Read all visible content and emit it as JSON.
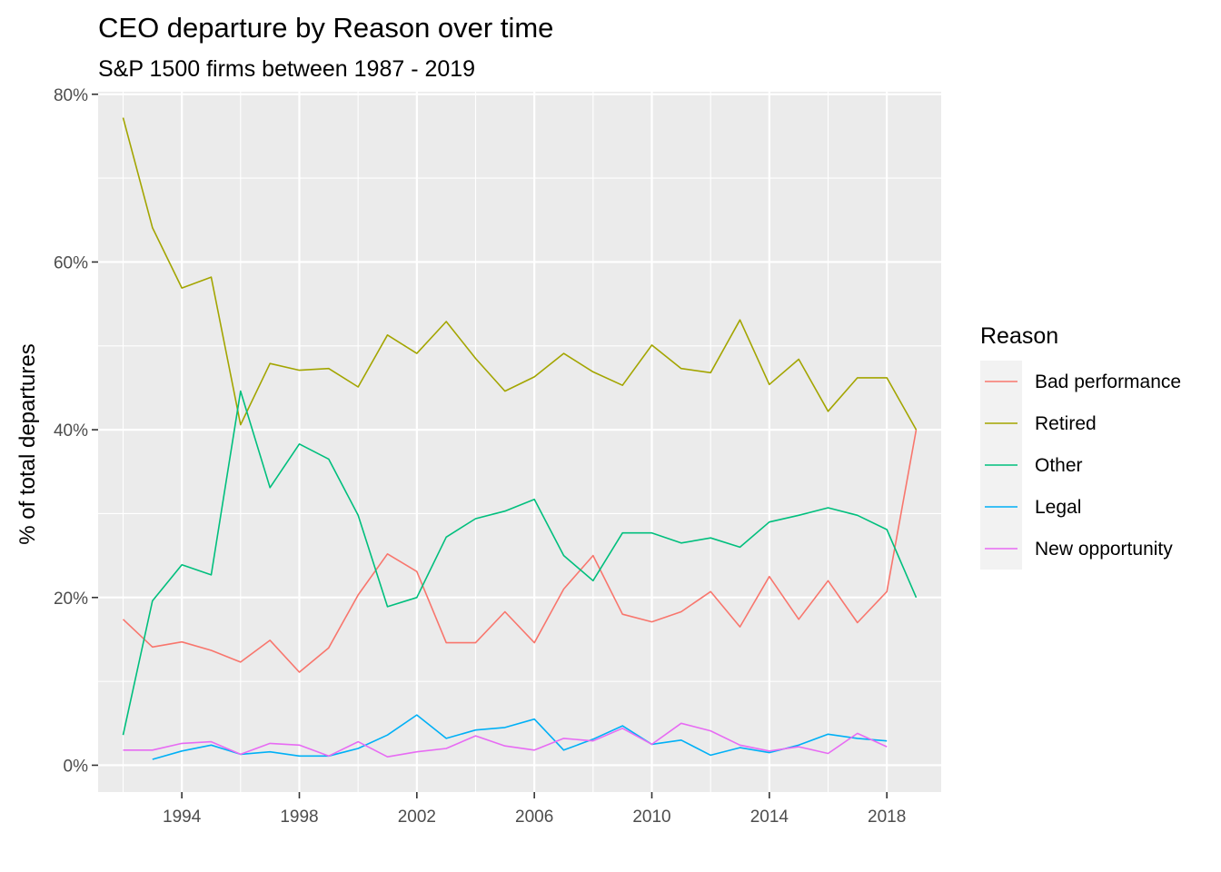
{
  "chart_data": {
    "type": "line",
    "title": "CEO departure by Reason over time",
    "subtitle": "S&P 1500 firms between 1987 - 2019",
    "xlabel": "",
    "ylabel": "% of total departures",
    "xlim": [
      1991.15,
      2019.85
    ],
    "ylim": [
      -3.2,
      80.3
    ],
    "x_ticks": [
      1994,
      1998,
      2002,
      2006,
      2010,
      2014,
      2018
    ],
    "x_minor_ticks": [
      1992,
      1996,
      2000,
      2004,
      2008,
      2012,
      2016
    ],
    "y_ticks": [
      0,
      20,
      40,
      60,
      80
    ],
    "y_tick_labels": [
      "0%",
      "20%",
      "40%",
      "60%",
      "80%"
    ],
    "y_minor_ticks": [
      10,
      30,
      50,
      70
    ],
    "grid": true,
    "panel_background": "#ebebeb",
    "legend": {
      "title": "Reason",
      "position": "right"
    },
    "series": [
      {
        "name": "Bad performance",
        "color": "#F8766D",
        "x": [
          1992,
          1993,
          1994,
          1995,
          1996,
          1997,
          1998,
          1999,
          2000,
          2001,
          2002,
          2003,
          2004,
          2005,
          2006,
          2007,
          2008,
          2009,
          2010,
          2011,
          2012,
          2013,
          2014,
          2015,
          2016,
          2017,
          2018,
          2019
        ],
        "y": [
          17.4,
          14.1,
          14.7,
          13.7,
          12.3,
          14.9,
          11.1,
          14.0,
          20.3,
          25.2,
          23.1,
          14.6,
          14.6,
          18.3,
          14.6,
          21.0,
          25.0,
          18.0,
          17.1,
          18.3,
          20.7,
          16.5,
          22.5,
          17.4,
          22.0,
          17.0,
          20.7,
          40.0
        ]
      },
      {
        "name": "Retired",
        "color": "#A3A500",
        "x": [
          1992,
          1993,
          1994,
          1995,
          1996,
          1997,
          1998,
          1999,
          2000,
          2001,
          2002,
          2003,
          2004,
          2005,
          2006,
          2007,
          2008,
          2009,
          2010,
          2011,
          2012,
          2013,
          2014,
          2015,
          2016,
          2017,
          2018,
          2019
        ],
        "y": [
          77.2,
          64.1,
          56.9,
          58.2,
          40.6,
          47.9,
          47.1,
          47.3,
          45.1,
          51.3,
          49.1,
          52.9,
          48.5,
          44.6,
          46.3,
          49.1,
          46.9,
          45.3,
          50.1,
          47.3,
          46.8,
          53.1,
          45.4,
          48.4,
          42.2,
          46.2,
          46.2,
          40.0
        ]
      },
      {
        "name": "Other",
        "color": "#00BF7D",
        "x": [
          1992,
          1993,
          1994,
          1995,
          1996,
          1997,
          1998,
          1999,
          2000,
          2001,
          2002,
          2003,
          2004,
          2005,
          2006,
          2007,
          2008,
          2009,
          2010,
          2011,
          2012,
          2013,
          2014,
          2015,
          2016,
          2017,
          2018,
          2019
        ],
        "y": [
          3.6,
          19.6,
          23.9,
          22.7,
          44.6,
          33.1,
          38.3,
          36.5,
          29.8,
          18.9,
          20.0,
          27.2,
          29.4,
          30.3,
          31.7,
          25.0,
          22.0,
          27.7,
          27.7,
          26.5,
          27.1,
          26.0,
          29.0,
          29.8,
          30.7,
          29.8,
          28.1,
          20.0
        ]
      },
      {
        "name": "Legal",
        "color": "#00B0F6",
        "x": [
          1993,
          1994,
          1995,
          1996,
          1997,
          1998,
          1999,
          2000,
          2001,
          2002,
          2003,
          2004,
          2005,
          2006,
          2007,
          2008,
          2009,
          2010,
          2011,
          2012,
          2013,
          2014,
          2015,
          2016,
          2017,
          2018
        ],
        "y": [
          0.7,
          1.7,
          2.4,
          1.3,
          1.6,
          1.1,
          1.1,
          2.0,
          3.6,
          6.0,
          3.2,
          4.2,
          4.5,
          5.5,
          1.8,
          3.1,
          4.7,
          2.5,
          3.0,
          1.2,
          2.1,
          1.5,
          2.4,
          3.7,
          3.2,
          2.9
        ]
      },
      {
        "name": "New opportunity",
        "color": "#E76BF3",
        "x": [
          1992,
          1993,
          1994,
          1995,
          1996,
          1997,
          1998,
          1999,
          2000,
          2001,
          2002,
          2003,
          2004,
          2005,
          2006,
          2007,
          2008,
          2009,
          2010,
          2011,
          2012,
          2013,
          2014,
          2015,
          2016,
          2017,
          2018
        ],
        "y": [
          1.8,
          1.8,
          2.6,
          2.8,
          1.3,
          2.6,
          2.4,
          1.1,
          2.8,
          1.0,
          1.6,
          2.0,
          3.5,
          2.3,
          1.8,
          3.2,
          2.9,
          4.4,
          2.5,
          5.0,
          4.1,
          2.4,
          1.7,
          2.2,
          1.4,
          3.8,
          2.2
        ]
      }
    ]
  }
}
